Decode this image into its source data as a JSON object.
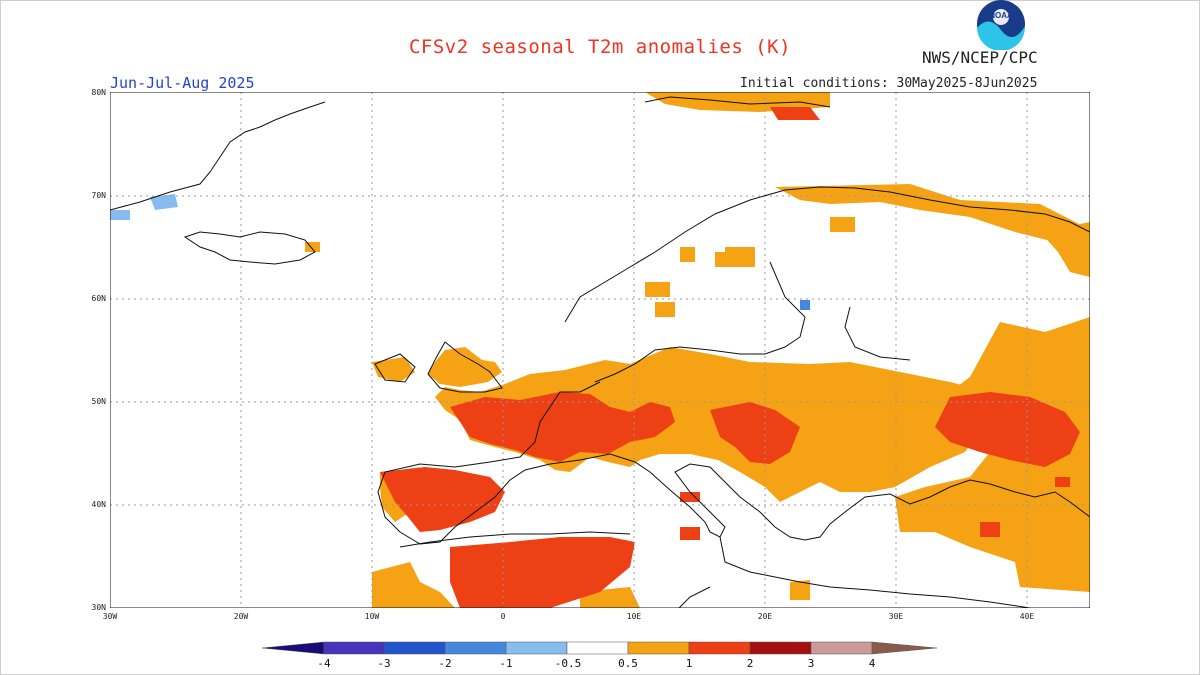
{
  "header": {
    "title": "CFSv2 seasonal T2m anomalies (K)",
    "agency": "NWS/NCEP/CPC",
    "period": "Jun-Jul-Aug 2025",
    "initial_conditions": "Initial conditions: 30May2025-8Jun2025",
    "logo_text": "NOAA"
  },
  "axes": {
    "lat_labels": [
      "80N",
      "70N",
      "60N",
      "50N",
      "40N",
      "30N"
    ],
    "lon_labels": [
      "30W",
      "20W",
      "10W",
      "0",
      "10E",
      "20E",
      "30E",
      "40E"
    ]
  },
  "colorbar": {
    "labels": [
      "-4",
      "-3",
      "-2",
      "-1",
      "-0.5",
      "0.5",
      "1",
      "2",
      "3",
      "4"
    ],
    "colors": {
      "below_-4": "#1a0a7a",
      "-4_-3": "#4433bb",
      "-3_-2": "#2255cc",
      "-2_-1": "#4488dd",
      "-1_-0.5": "#88bbee",
      "-0.5_0.5": "#ffffff",
      "0.5_1": "#f5a214",
      "1_2": "#ee4015",
      "2_3": "#a50f0f",
      "3_4": "#cc9999",
      "above_4": "#8a5a4a"
    }
  }
}
